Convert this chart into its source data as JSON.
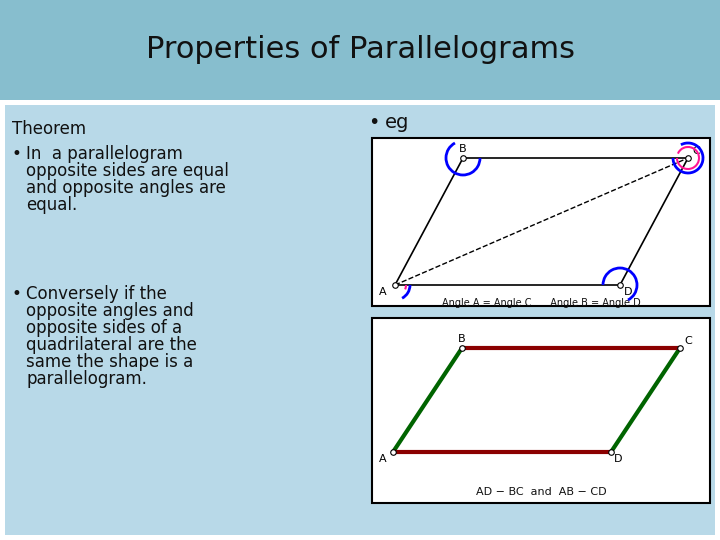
{
  "title": "Properties of Parallelograms",
  "title_bg": "#87BECE",
  "content_bg": "#B8D9E8",
  "white_bg": "#FFFFFF",
  "theorem_header": "Theorem",
  "bullet1_line1": "In  a parallelogram",
  "bullet1_line2": "opposite sides are equal",
  "bullet1_line3": "and opposite angles are",
  "bullet1_line4": "equal.",
  "bullet2_line1": "Conversely if the",
  "bullet2_line2": "opposite angles and",
  "bullet2_line3": "opposite sides of a",
  "bullet2_line4": "quadrilateral are the",
  "bullet2_line5": "same the shape is a",
  "bullet2_line6": "parallelogram.",
  "eg_label": "eg",
  "diagram1_caption": "Angle A = Angle C      Angle B = Angle D",
  "diagram2_caption": "AD − BC  and  AB − CD",
  "font_color": "#111111",
  "title_fontsize": 22,
  "body_fontsize": 12
}
